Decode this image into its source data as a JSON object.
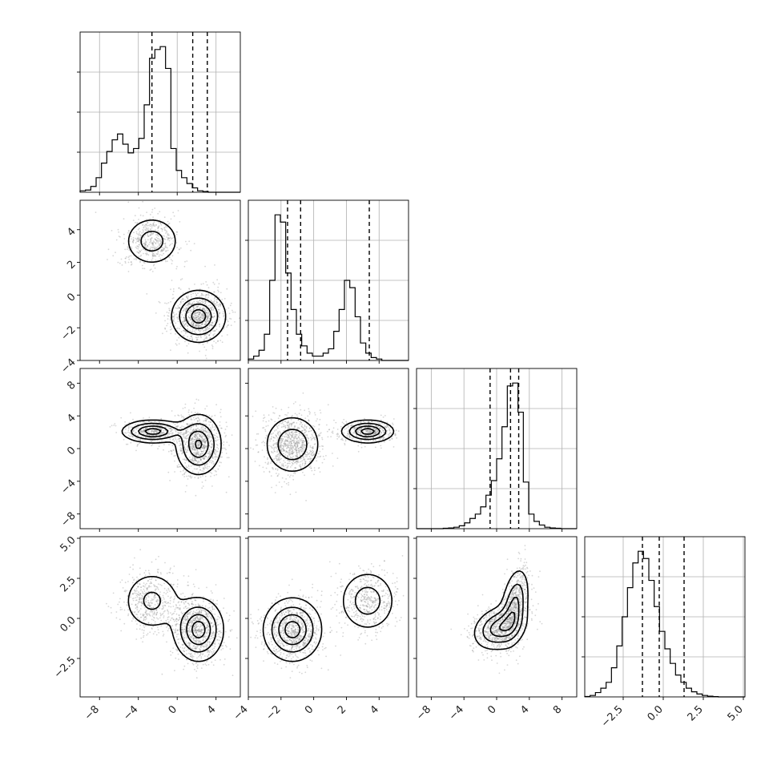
{
  "chart_data": {
    "type": "corner",
    "parameters": 4,
    "axis_ticks": [
      {
        "ticks": [
          -8,
          -4,
          0,
          4
        ],
        "labels": [
          "−8",
          "−4",
          "0",
          "4"
        ]
      },
      {
        "ticks": [
          -4,
          -2,
          0,
          2,
          4
        ],
        "labels": [
          "−4",
          "−2",
          "0",
          "2",
          "4"
        ]
      },
      {
        "ticks": [
          -8,
          -4,
          0,
          4,
          8
        ],
        "labels": [
          "−8",
          "−4",
          "0",
          "4",
          "8"
        ]
      },
      {
        "ticks": [
          -2.5,
          0.0,
          2.5,
          5.0
        ],
        "labels": [
          "−2.5",
          "0.0",
          "2.5",
          "5.0"
        ]
      }
    ],
    "y_tick_labels": [
      null,
      {
        "ticks": [
          -4,
          -2,
          0,
          2,
          4
        ],
        "labels": [
          "−4",
          "−2",
          "0",
          "2",
          "4"
        ]
      },
      {
        "ticks": [
          -8,
          -4,
          0,
          4,
          8
        ],
        "labels": [
          "−8",
          "−4",
          "0",
          "4",
          "8"
        ]
      },
      {
        "ticks": [
          -2.5,
          0.0,
          2.5,
          5.0
        ],
        "labels": [
          "−2.5",
          "0.0",
          "2.5",
          "5.0"
        ]
      }
    ],
    "ranges": [
      [
        -10,
        6.5
      ],
      [
        -4,
        5.8
      ],
      [
        -9.8,
        9.8
      ],
      [
        -4.9,
        5.1
      ]
    ],
    "quantiles": [
      [
        -2.6,
        1.6,
        3.1
      ],
      [
        -1.6,
        -0.8,
        3.4
      ],
      [
        -0.8,
        1.7,
        2.7
      ],
      [
        -1.3,
        -0.25,
        1.3
      ]
    ],
    "marginals": [
      {
        "bins": 30,
        "counts": [
          0.01,
          0.015,
          0.04,
          0.1,
          0.2,
          0.28,
          0.36,
          0.4,
          0.33,
          0.27,
          0.3,
          0.37,
          0.6,
          0.92,
          0.98,
          1.0,
          0.85,
          0.3,
          0.15,
          0.1,
          0.06,
          0.03,
          0.01,
          0.005,
          0,
          0,
          0,
          0,
          0,
          0
        ]
      },
      {
        "bins": 30,
        "counts": [
          0.01,
          0.03,
          0.07,
          0.18,
          0.55,
          1.0,
          0.95,
          0.6,
          0.35,
          0.18,
          0.1,
          0.05,
          0.03,
          0.03,
          0.05,
          0.08,
          0.2,
          0.35,
          0.55,
          0.5,
          0.3,
          0.12,
          0.05,
          0.02,
          0.01,
          0,
          0,
          0,
          0,
          0
        ]
      },
      {
        "bins": 30,
        "counts": [
          0,
          0,
          0,
          0,
          0,
          0.003,
          0.005,
          0.01,
          0.02,
          0.04,
          0.07,
          0.1,
          0.15,
          0.23,
          0.33,
          0.48,
          0.7,
          0.98,
          1.0,
          0.8,
          0.32,
          0.1,
          0.05,
          0.025,
          0.01,
          0.005,
          0.003,
          0,
          0,
          0
        ]
      },
      {
        "bins": 30,
        "counts": [
          0.003,
          0.01,
          0.03,
          0.06,
          0.1,
          0.2,
          0.35,
          0.55,
          0.75,
          0.92,
          1.0,
          0.95,
          0.8,
          0.62,
          0.45,
          0.33,
          0.23,
          0.15,
          0.1,
          0.06,
          0.035,
          0.02,
          0.01,
          0.005,
          0.002,
          0,
          0,
          0,
          0,
          0
        ]
      }
    ],
    "joint_components": {
      "1_0": [
        {
          "mean": [
            -2.6,
            3.3
          ],
          "sd": [
            1.5,
            0.8
          ],
          "rho": 0.0,
          "w": 0.35
        },
        {
          "mean": [
            2.2,
            -1.3
          ],
          "sd": [
            1.4,
            0.8
          ],
          "rho": 0.0,
          "w": 0.65
        }
      ],
      "2_0": [
        {
          "mean": [
            -2.5,
            2.1
          ],
          "sd": [
            1.6,
            0.7
          ],
          "rho": 0.0,
          "w": 0.35
        },
        {
          "mean": [
            2.2,
            0.5
          ],
          "sd": [
            1.2,
            1.9
          ],
          "rho": 0.0,
          "w": 0.65
        }
      ],
      "2_1": [
        {
          "mean": [
            -1.3,
            0.5
          ],
          "sd": [
            0.9,
            1.9
          ],
          "rho": 0.0,
          "w": 0.65
        },
        {
          "mean": [
            3.3,
            2.1
          ],
          "sd": [
            0.8,
            0.7
          ],
          "rho": 0.0,
          "w": 0.35
        }
      ],
      "3_0": [
        {
          "mean": [
            -2.6,
            1.1
          ],
          "sd": [
            1.6,
            1.0
          ],
          "rho": 0.0,
          "w": 0.35
        },
        {
          "mean": [
            2.2,
            -0.7
          ],
          "sd": [
            1.3,
            1.0
          ],
          "rho": 0.0,
          "w": 0.65
        }
      ],
      "3_1": [
        {
          "mean": [
            -1.3,
            -0.7
          ],
          "sd": [
            0.9,
            1.0
          ],
          "rho": 0.0,
          "w": 0.65
        },
        {
          "mean": [
            3.3,
            1.1
          ],
          "sd": [
            0.9,
            1.0
          ],
          "rho": 0.0,
          "w": 0.35
        }
      ],
      "3_2": [
        {
          "mean": [
            0.3,
            -0.6
          ],
          "sd": [
            1.6,
            0.7
          ],
          "rho": 0.25,
          "w": 0.55
        },
        {
          "mean": [
            2.2,
            0.8
          ],
          "sd": [
            0.9,
            1.2
          ],
          "rho": 0.35,
          "w": 0.45
        }
      ]
    },
    "grid": true,
    "colors": {
      "points": "#8a8a8a",
      "line": "#000000",
      "grid": "#b0b0b0",
      "background": "#ffffff"
    }
  }
}
